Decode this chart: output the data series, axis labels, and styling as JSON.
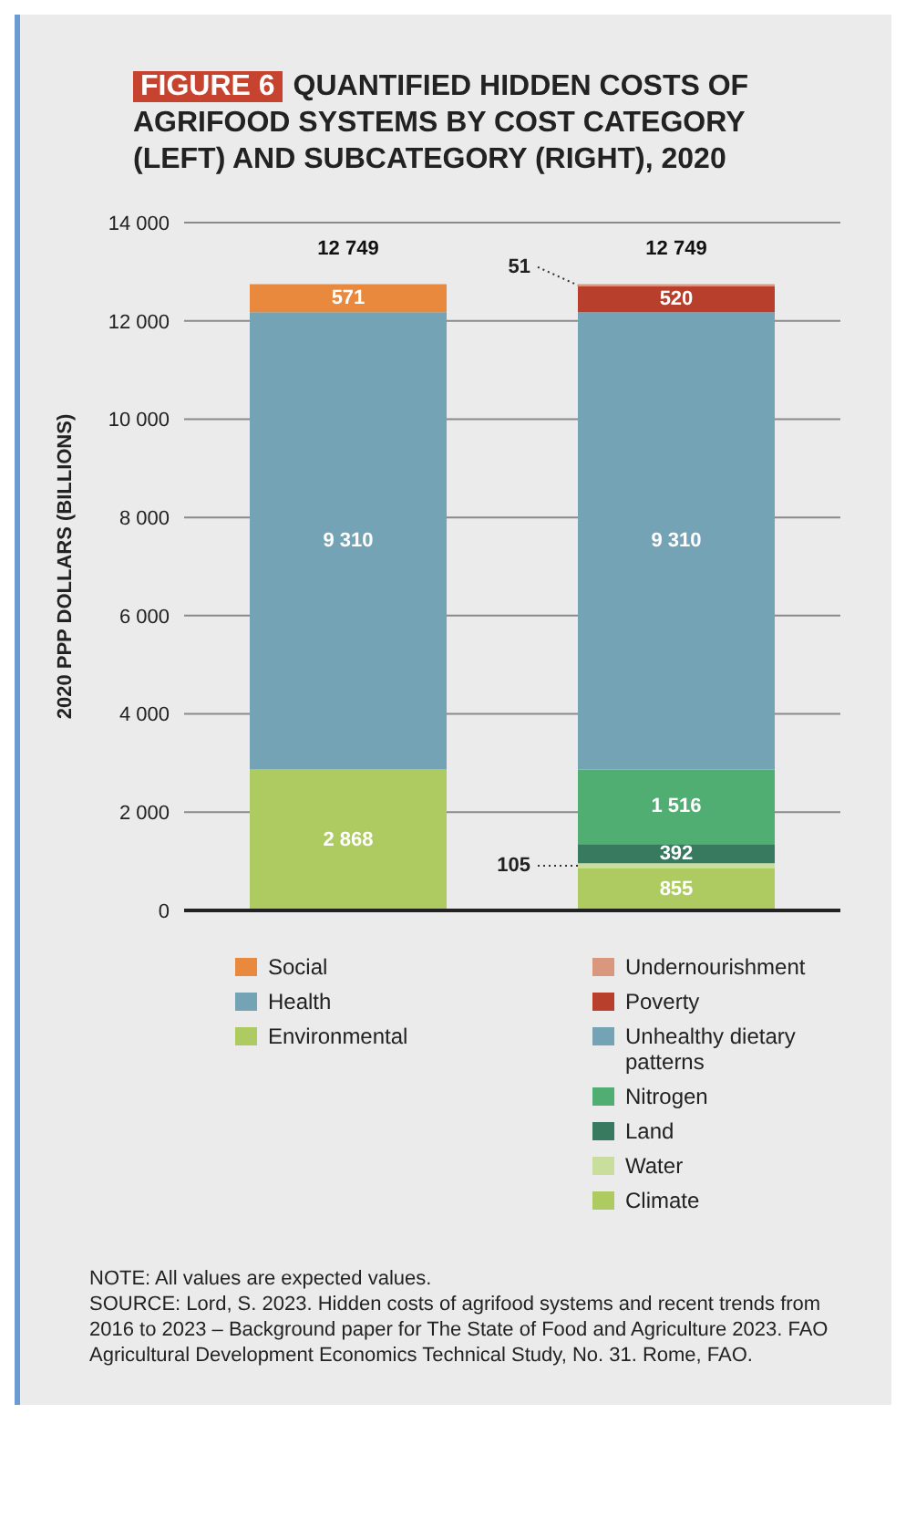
{
  "chart_data": {
    "type": "bar",
    "subtitle": "FIGURE 6",
    "title": "QUANTIFIED HIDDEN COSTS OF AGRIFOOD SYSTEMS BY COST CATEGORY (LEFT) AND SUBCATEGORY (RIGHT), 2020",
    "ylabel": "2020 PPP DOLLARS (BILLIONS)",
    "categories": [
      null,
      null
    ],
    "stacked": true,
    "ylim": [
      0,
      14000
    ],
    "yticks": [
      0,
      {
        "value": 2000,
        "label": "2 000"
      },
      {
        "value": 4000,
        "label": "4 000"
      },
      {
        "value": 6000,
        "label": "6 000"
      },
      {
        "value": 8000,
        "label": "8 000"
      },
      {
        "value": 10000,
        "label": "10 000"
      },
      {
        "value": 12000,
        "label": "12 000"
      },
      {
        "value": 14000,
        "label": "14 000"
      }
    ],
    "grid": "y",
    "legend": "bottom",
    "totals": [
      "12 749",
      "12 749"
    ],
    "series": [
      {
        "name": "Environmental",
        "color": "#adcb60",
        "values": [
          2868,
          null
        ],
        "value_labels": [
          "2 868",
          null
        ]
      },
      {
        "name": "Health",
        "color": "#74a3b5",
        "values": [
          9310,
          null
        ],
        "value_labels": [
          "9 310",
          null
        ]
      },
      {
        "name": "Social",
        "color": "#e8893d",
        "values": [
          571,
          null
        ],
        "value_labels": [
          "571",
          null
        ]
      },
      {
        "name": "Climate",
        "color": "#adcb60",
        "values": [
          null,
          855
        ],
        "value_labels": [
          null,
          "855"
        ]
      },
      {
        "name": "Water",
        "color": "#c9dd9c",
        "values": [
          null,
          105
        ],
        "value_labels": [
          null,
          "105"
        ]
      },
      {
        "name": "Land",
        "color": "#377a5f",
        "values": [
          null,
          392
        ],
        "value_labels": [
          null,
          "392"
        ]
      },
      {
        "name": "Nitrogen",
        "color": "#50ae72",
        "values": [
          null,
          1516
        ],
        "value_labels": [
          null,
          "1 516"
        ]
      },
      {
        "name": "Unhealthy dietary patterns",
        "color": "#74a3b5",
        "values": [
          null,
          9310
        ],
        "value_labels": [
          null,
          "9 310"
        ]
      },
      {
        "name": "Poverty",
        "color": "#b83f2b",
        "values": [
          null,
          520
        ],
        "value_labels": [
          null,
          "520"
        ]
      },
      {
        "name": "Undernourishment",
        "color": "#d9977e",
        "values": [
          null,
          51
        ],
        "value_labels": [
          null,
          "51"
        ]
      }
    ],
    "annotations": [
      "NOTE: All values are expected values.",
      "SOURCE: Lord, S. 2023. Hidden costs of agrifood systems and recent trends from 2016 to 2023 – Background paper for The State of Food and Agriculture 2023. FAO Agricultural Development Economics Technical Study, No. 31. Rome, FAO."
    ]
  }
}
